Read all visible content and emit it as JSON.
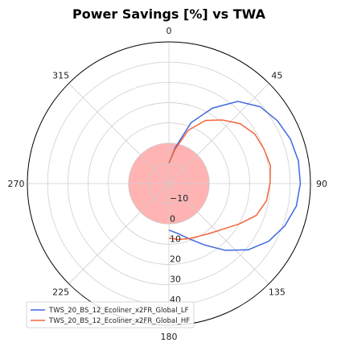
{
  "chart_data": {
    "type": "polar-line",
    "title": "Power Savings [%] vs TWA",
    "angle_ticks": [
      {
        "deg": 0,
        "label": "0"
      },
      {
        "deg": 45,
        "label": "45"
      },
      {
        "deg": 90,
        "label": "90"
      },
      {
        "deg": 135,
        "label": "135"
      },
      {
        "deg": 180,
        "label": "180"
      },
      {
        "deg": 225,
        "label": "225"
      },
      {
        "deg": 270,
        "label": "270"
      },
      {
        "deg": 315,
        "label": "315"
      }
    ],
    "r_ticks": [
      -10,
      0,
      10,
      20,
      30,
      40
    ],
    "r_tick_labels": [
      "−10",
      "0",
      "10",
      "20",
      "30",
      "40"
    ],
    "rlim": [
      -20,
      50
    ],
    "grid": true,
    "negative_fill_color": "#ffb3b3",
    "legend_position": "lower-left",
    "series": [
      {
        "name": "TWS_20_BS_12_Ecoliner_x2FR_Global_LF",
        "color": "#4169e1",
        "twa": [
          0,
          10,
          20,
          30,
          40,
          50,
          60,
          70,
          80,
          90,
          100,
          110,
          120,
          130,
          140,
          150,
          160,
          170,
          180
        ],
        "savings": [
          -10,
          -2,
          12,
          23,
          33,
          39,
          42,
          44,
          45,
          45,
          44,
          41,
          37,
          31,
          23,
          15,
          9,
          5,
          3
        ]
      },
      {
        "name": "TWS_20_BS_12_Ecoliner_x2FR_Global_HF",
        "color": "#f4643c",
        "twa": [
          0,
          10,
          20,
          30,
          40,
          50,
          60,
          70,
          80,
          90,
          100,
          110,
          120,
          130,
          140,
          150,
          160,
          170,
          180
        ],
        "savings": [
          -10,
          -3,
          8,
          16,
          21,
          26,
          29,
          30,
          31,
          30,
          29,
          26,
          20,
          15,
          12,
          10,
          9,
          8,
          7
        ]
      }
    ]
  }
}
